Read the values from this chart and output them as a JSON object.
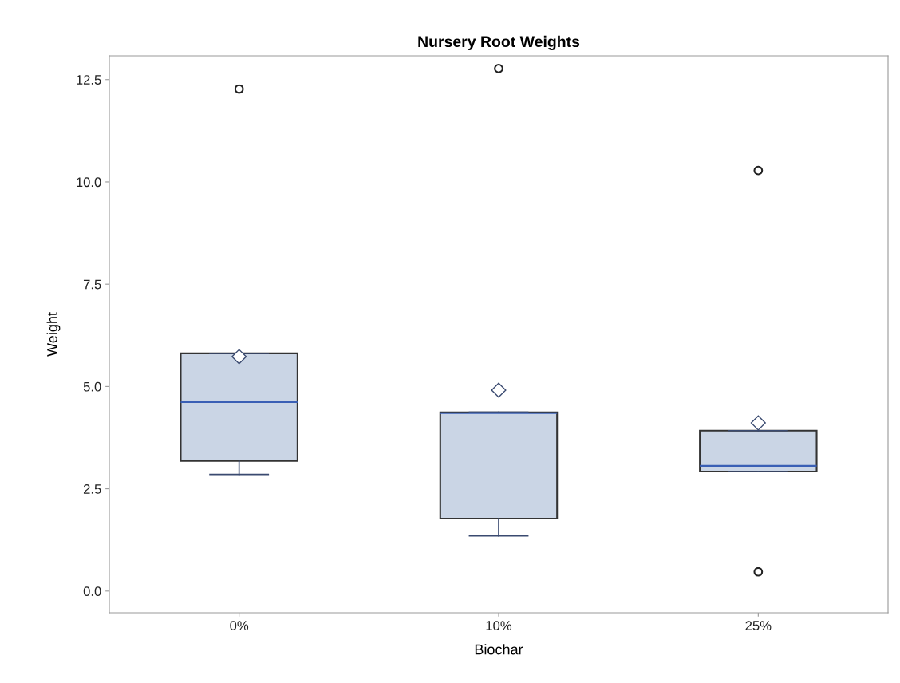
{
  "chart_data": {
    "type": "box",
    "title": "Nursery Root Weights",
    "xlabel": "Biochar",
    "ylabel": "Weight",
    "categories": [
      "0%",
      "10%",
      "25%"
    ],
    "color": "#cad5e5",
    "boxes": [
      {
        "low": 2.85,
        "q1": 3.18,
        "median": 4.62,
        "q3": 5.81,
        "high": 5.81,
        "mean": 5.73,
        "outliers": [
          12.27
        ]
      },
      {
        "low": 1.35,
        "q1": 1.77,
        "median": 4.35,
        "q3": 4.37,
        "high": 4.37,
        "mean": 4.91,
        "outliers": [
          12.77
        ]
      },
      {
        "low": 2.92,
        "q1": 2.92,
        "median": 3.06,
        "q3": 3.92,
        "high": 3.92,
        "mean": 4.11,
        "outliers": [
          10.28,
          0.47
        ]
      }
    ],
    "ylim": [
      -0.53,
      13.08
    ],
    "yticks": [
      {
        "value": 0,
        "label": "0.0"
      },
      {
        "value": 2.5,
        "label": "2.5"
      },
      {
        "value": 5,
        "label": "5.0"
      },
      {
        "value": 7.5,
        "label": "7.5"
      },
      {
        "value": 10,
        "label": "10.0"
      },
      {
        "value": 12.5,
        "label": "12.5"
      }
    ],
    "grid": false,
    "legend": false
  }
}
